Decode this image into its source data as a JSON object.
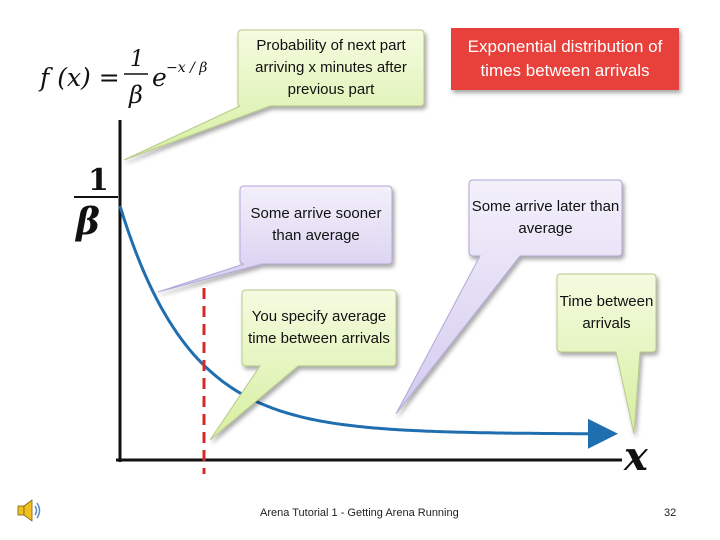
{
  "title": "Exponential distribution of times between arrivals",
  "formula": {
    "lhs": "f (x) =",
    "numerator": "1",
    "denominator": "β",
    "base": "e",
    "exponent": "−x / β"
  },
  "y_axis_label": {
    "numerator": "1",
    "denominator": "β"
  },
  "x_axis_label": "x",
  "callouts": {
    "probability": "Probability of next part arriving x minutes after previous part",
    "sooner": "Some arrive sooner than average",
    "later": "Some arrive later than average",
    "average": "You specify average time between arrivals",
    "time_between": "Time between arrivals"
  },
  "colors": {
    "title_bg": "#e8403a",
    "green_callout": "#dff3b0",
    "purple_callout": "#ddd6f2",
    "curve": "#1f6fb0",
    "mean_line": "#d42a2a"
  },
  "footer": {
    "center": "Arena Tutorial 1 - Getting Arena Running",
    "page": "32"
  },
  "speaker_icon": "speaker-icon"
}
